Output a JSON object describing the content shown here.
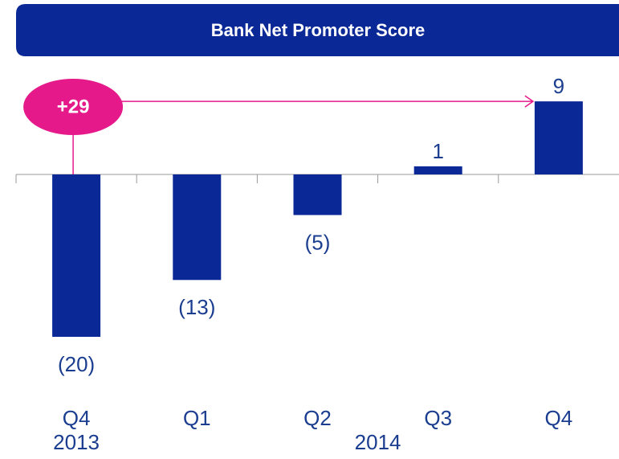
{
  "chart_data": {
    "type": "bar",
    "title": "Bank Net Promoter Score",
    "categories": [
      "Q4",
      "Q1",
      "Q2",
      "Q3",
      "Q4"
    ],
    "values": [
      -20,
      -13,
      -5,
      1,
      9
    ],
    "value_labels": [
      "(20)",
      "(13)",
      "(5)",
      "1",
      "9"
    ],
    "groups": [
      {
        "label": "2013",
        "from": 0,
        "to": 0
      },
      {
        "label": "2014",
        "from": 1,
        "to": 4
      }
    ],
    "annotation": {
      "text": "+29",
      "from": 0,
      "to": 4
    },
    "color": "#0a2896",
    "label_color": "#1a3d8f",
    "annotation_color": "#e5198a"
  }
}
